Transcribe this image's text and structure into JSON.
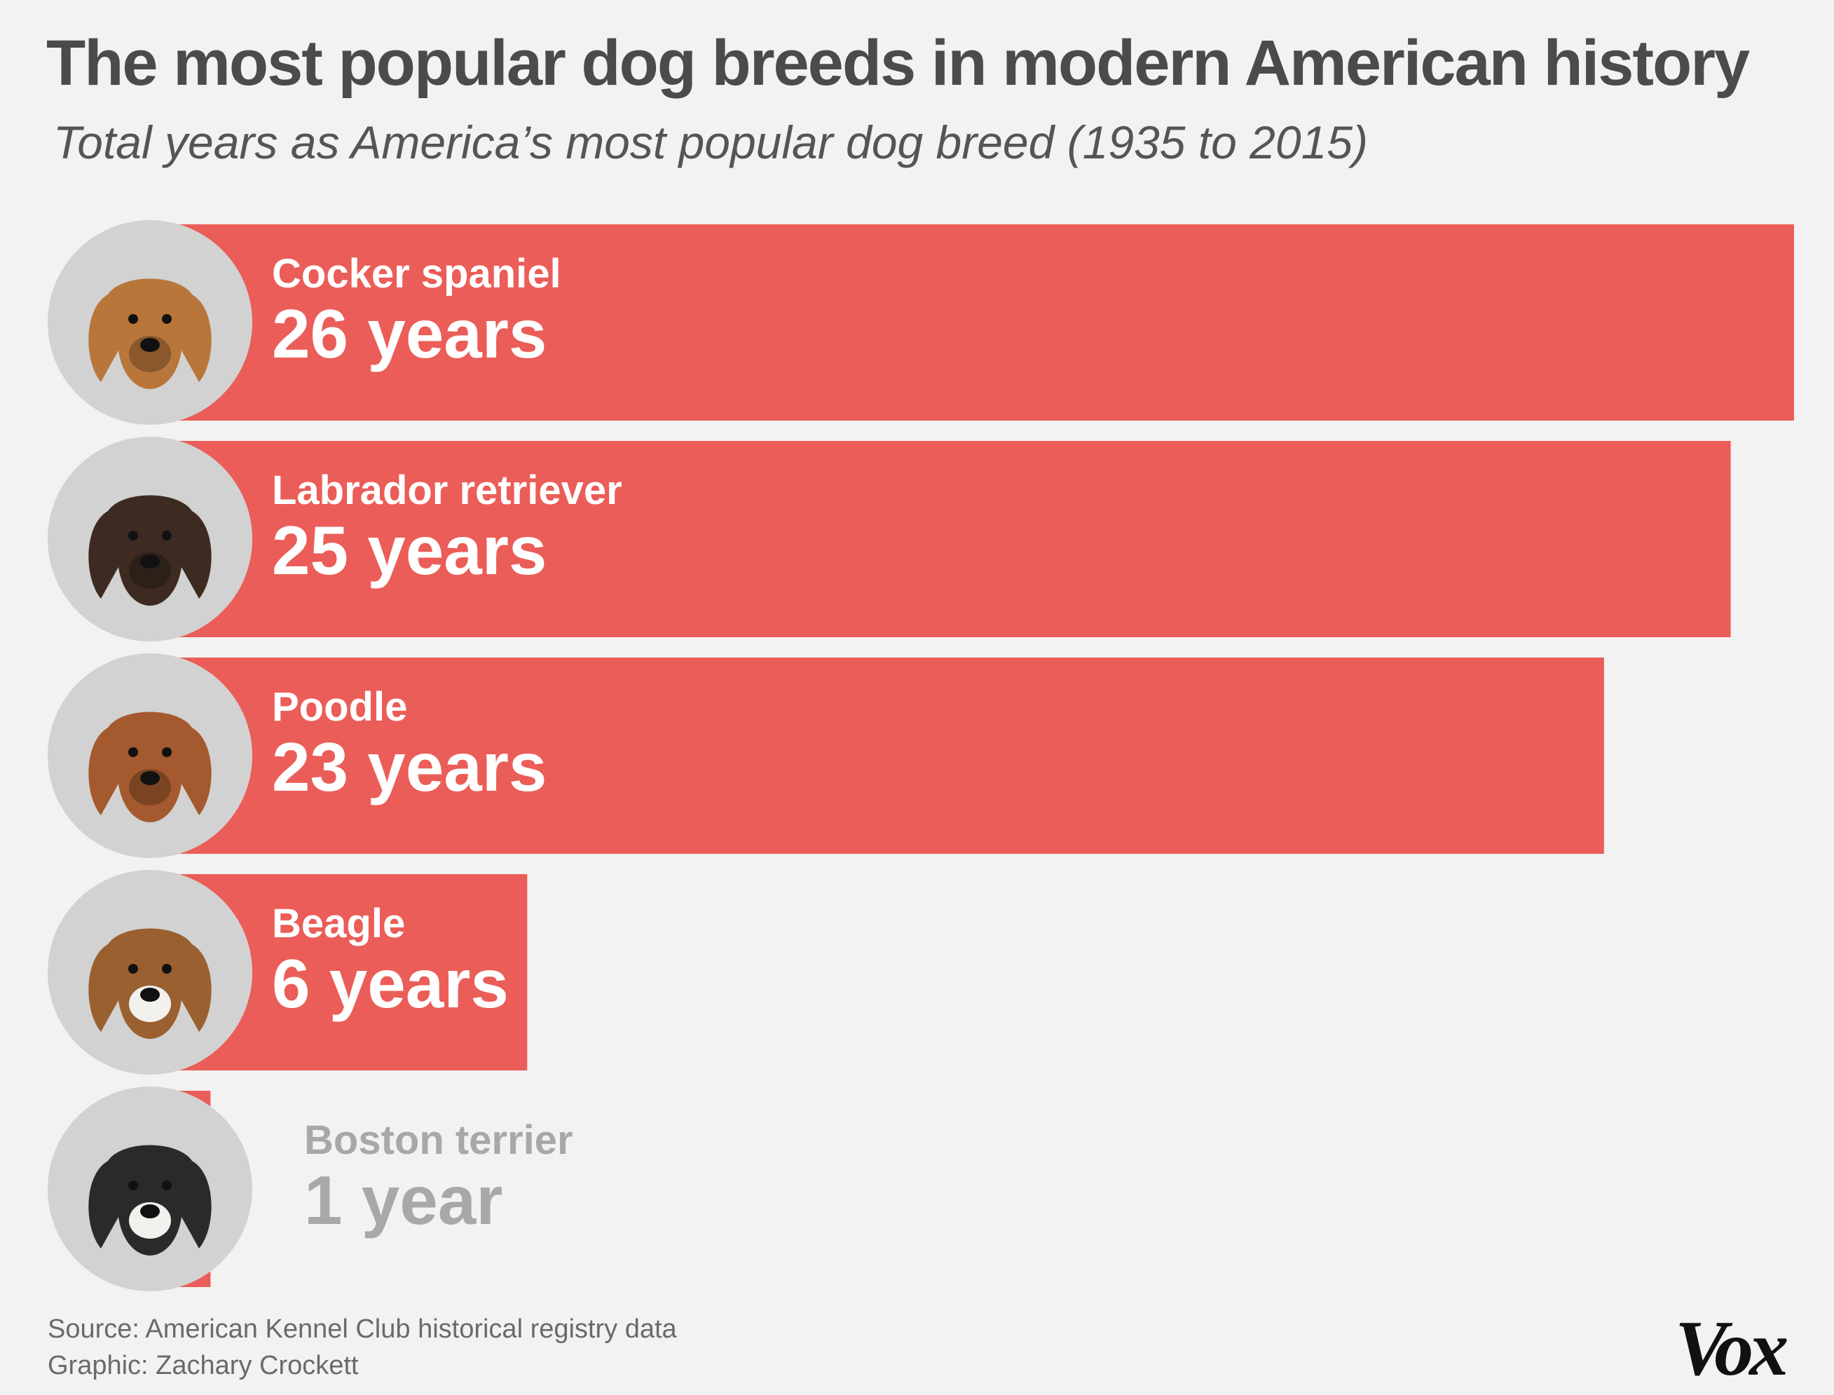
{
  "title": "The most popular dog breeds in modern American history",
  "subtitle": "Total years as America’s most popular dog breed (1935 to 2015)",
  "colors": {
    "bar": "#eb5d58",
    "label_on_bar": "#ffffff",
    "label_off_bar": "#a8a8a8",
    "circle": "#d2d2d2"
  },
  "chart_data": {
    "type": "bar",
    "orientation": "horizontal",
    "categories": [
      "Cocker spaniel",
      "Labrador retriever",
      "Poodle",
      "Beagle",
      "Boston terrier"
    ],
    "values": [
      26,
      25,
      23,
      6,
      1
    ],
    "value_labels": [
      "26 years",
      "25 years",
      "23 years",
      "6 years",
      "1 year"
    ],
    "icons": [
      "cocker-spaniel-photo",
      "labrador-retriever-photo",
      "poodle-photo",
      "beagle-photo",
      "boston-terrier-photo"
    ],
    "unit": "years",
    "xlim": [
      0,
      26
    ],
    "grid": false,
    "legend": "none"
  },
  "source": {
    "line1": "Source: American Kennel Club historical registry data",
    "line2": "Graphic: Zachary Crockett"
  },
  "brand": "Vox"
}
